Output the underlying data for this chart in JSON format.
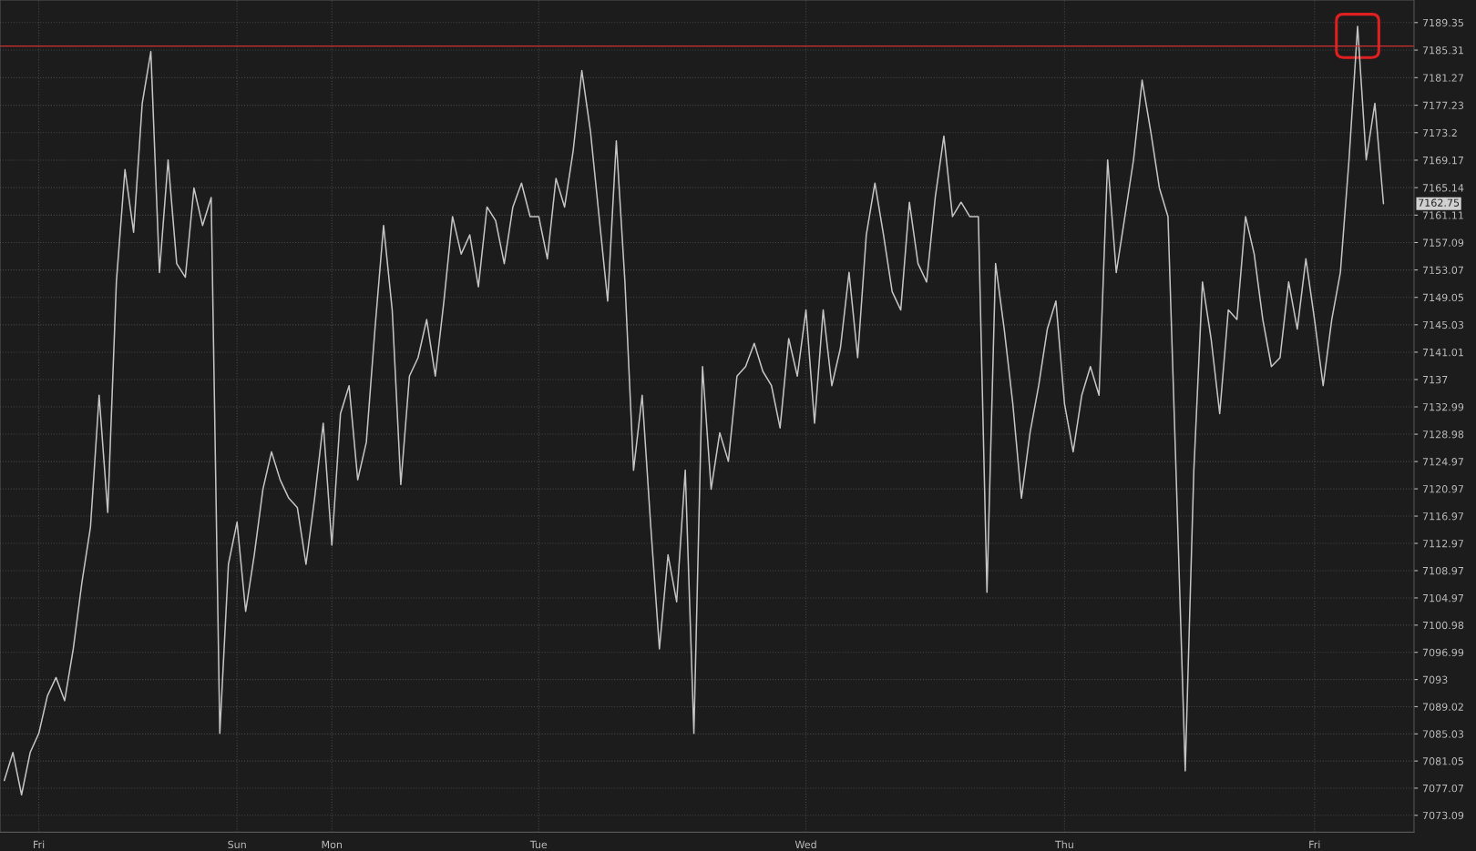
{
  "chart_data": {
    "type": "line",
    "categories": [
      null,
      null,
      null,
      null,
      "Fri",
      null,
      null,
      null,
      null,
      null,
      null,
      null,
      null,
      null,
      null,
      null,
      null,
      null,
      null,
      null,
      null,
      null,
      null,
      null,
      null,
      null,
      null,
      "Sun",
      null,
      null,
      null,
      null,
      null,
      null,
      null,
      null,
      null,
      null,
      "Mon",
      null,
      null,
      null,
      null,
      null,
      null,
      null,
      null,
      null,
      null,
      null,
      null,
      null,
      null,
      null,
      null,
      null,
      null,
      null,
      null,
      null,
      null,
      null,
      "Tue",
      null,
      null,
      null,
      null,
      null,
      null,
      null,
      null,
      null,
      null,
      null,
      null,
      null,
      null,
      null,
      null,
      null,
      null,
      null,
      null,
      null,
      null,
      null,
      null,
      null,
      null,
      null,
      null,
      null,
      null,
      "Wed",
      null,
      null,
      null,
      null,
      null,
      null,
      null,
      null,
      null,
      null,
      null,
      null,
      null,
      null,
      null,
      null,
      null,
      null,
      null,
      null,
      null,
      null,
      null,
      null,
      null,
      null,
      null,
      null,
      null,
      "Thu",
      null,
      null,
      null,
      null,
      null,
      null,
      null,
      null,
      null,
      null,
      null,
      null,
      null,
      null,
      null,
      null,
      null,
      null,
      null,
      null,
      null,
      null,
      null,
      null,
      null,
      null,
      null,
      null,
      "Fri",
      null,
      null,
      null,
      null,
      null,
      null,
      null,
      null
    ],
    "series": [
      {
        "color": "#c4c4c4",
        "values": [
          7078.2,
          7082.3,
          7076.1,
          7082.3,
          7085.1,
          7090.6,
          7093.3,
          7089.9,
          7097.5,
          7107.2,
          7115.4,
          7134.7,
          7117.5,
          7151.3,
          7167.8,
          7158.6,
          7177.5,
          7185.1,
          7152.7,
          7169.2,
          7154.0,
          7152.0,
          7165.1,
          7159.6,
          7163.7,
          7085.1,
          7109.9,
          7116.1,
          7103.0,
          7111.3,
          7120.9,
          7126.4,
          7122.3,
          7119.6,
          7118.2,
          7109.9,
          7119.6,
          7130.6,
          7112.7,
          7132.0,
          7136.1,
          7122.3,
          7127.8,
          7144.4,
          7159.6,
          7147.2,
          7121.6,
          7137.5,
          7140.2,
          7145.8,
          7137.5,
          7148.5,
          7160.9,
          7155.4,
          7158.2,
          7150.6,
          7162.3,
          7160.3,
          7154.0,
          7162.3,
          7165.8,
          7160.9,
          7160.9,
          7154.7,
          7166.5,
          7162.3,
          7170.6,
          7182.3,
          7173.4,
          7160.9,
          7148.5,
          7172.0,
          7151.3,
          7123.7,
          7134.7,
          7115.4,
          7097.5,
          7111.3,
          7104.4,
          7123.7,
          7085.1,
          7138.9,
          7120.9,
          7129.2,
          7125.0,
          7137.5,
          7138.9,
          7142.3,
          7138.2,
          7136.1,
          7129.9,
          7143.0,
          7137.5,
          7147.2,
          7130.6,
          7147.2,
          7136.1,
          7141.6,
          7152.7,
          7140.2,
          7158.2,
          7165.8,
          7158.2,
          7149.9,
          7147.2,
          7163.0,
          7154.0,
          7151.3,
          7163.7,
          7172.7,
          7160.9,
          7163.0,
          7160.9,
          7160.9,
          7105.8,
          7154.0,
          7144.4,
          7133.4,
          7119.6,
          7129.2,
          7136.1,
          7144.4,
          7148.5,
          7133.4,
          7126.4,
          7134.7,
          7138.9,
          7134.7,
          7169.2,
          7152.7,
          7160.9,
          7169.2,
          7180.9,
          7173.4,
          7165.1,
          7160.9,
          7120.9,
          7079.6,
          7123.7,
          7151.3,
          7143.0,
          7132.0,
          7147.2,
          7145.8,
          7160.9,
          7155.4,
          7145.8,
          7138.9,
          7140.2,
          7151.3,
          7144.4,
          7154.7,
          7145.8,
          7136.1,
          7145.8,
          7152.7,
          7169.2,
          7188.8,
          7169.2,
          7177.5,
          7162.8
        ]
      }
    ],
    "ylim": [
      7070.6,
      7192.66
    ],
    "yticks": [
      7073.09,
      7077.07,
      7081.05,
      7085.03,
      7089.02,
      7093,
      7096.99,
      7100.98,
      7104.97,
      7108.97,
      7112.97,
      7116.97,
      7120.97,
      7124.97,
      7128.98,
      7132.99,
      7137,
      7141.01,
      7145.03,
      7149.05,
      7153.07,
      7157.09,
      7161.11,
      7165.14,
      7169.17,
      7173.2,
      7177.23,
      7181.27,
      7185.31,
      7189.35
    ],
    "ref_lines": [
      {
        "axis": "y",
        "value": 7185.9,
        "color": "#d03030"
      }
    ],
    "annotations": [
      "7162.75"
    ],
    "grid": true,
    "marker": "none",
    "line_style": "solid"
  }
}
